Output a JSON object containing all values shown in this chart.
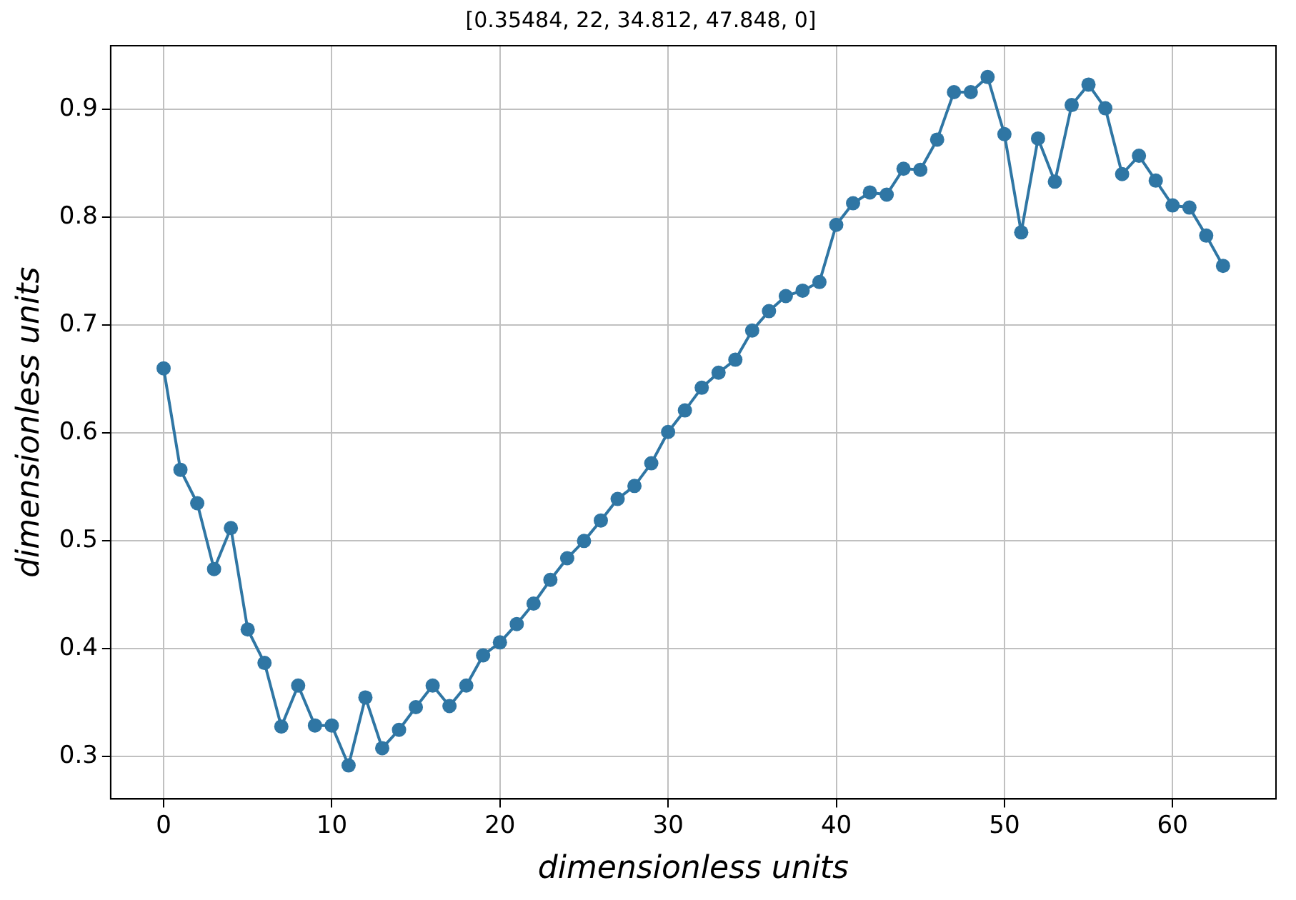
{
  "chart_data": {
    "type": "line",
    "title": "[0.35484, 22, 34.812, 47.848, 0]",
    "xlabel": "dimensionless units",
    "ylabel": "dimensionless units",
    "x": [
      0,
      1,
      2,
      3,
      4,
      5,
      6,
      7,
      8,
      9,
      10,
      11,
      12,
      13,
      14,
      15,
      16,
      17,
      18,
      19,
      20,
      21,
      22,
      23,
      24,
      25,
      26,
      27,
      28,
      29,
      30,
      31,
      32,
      33,
      34,
      35,
      36,
      37,
      38,
      39,
      40,
      41,
      42,
      43,
      44,
      45,
      46,
      47,
      48,
      49,
      50,
      51,
      52,
      53,
      54,
      55,
      56,
      57,
      58,
      59,
      60,
      61,
      62,
      63
    ],
    "series": [
      {
        "color": "#2f76a4",
        "values": [
          0.66,
          0.566,
          0.535,
          0.474,
          0.512,
          0.418,
          0.387,
          0.328,
          0.366,
          0.329,
          0.329,
          0.292,
          0.355,
          0.308,
          0.325,
          0.346,
          0.366,
          0.347,
          0.366,
          0.394,
          0.406,
          0.423,
          0.442,
          0.464,
          0.484,
          0.5,
          0.519,
          0.539,
          0.551,
          0.572,
          0.601,
          0.621,
          0.642,
          0.656,
          0.668,
          0.695,
          0.713,
          0.727,
          0.732,
          0.74,
          0.793,
          0.813,
          0.823,
          0.821,
          0.845,
          0.844,
          0.872,
          0.916,
          0.916,
          0.93,
          0.877,
          0.786,
          0.873,
          0.833,
          0.904,
          0.923,
          0.901,
          0.84,
          0.857,
          0.834,
          0.811,
          0.809,
          0.783,
          0.755
        ]
      }
    ],
    "xlim": [
      -3.15,
      66.15
    ],
    "ylim": [
      0.261,
      0.959
    ],
    "xticks": [
      0,
      10,
      20,
      30,
      40,
      50,
      60
    ],
    "yticks": [
      0.3,
      0.4,
      0.5,
      0.6,
      0.7,
      0.8,
      0.9
    ],
    "grid": true,
    "marker": "circle",
    "line_style": "solid"
  }
}
